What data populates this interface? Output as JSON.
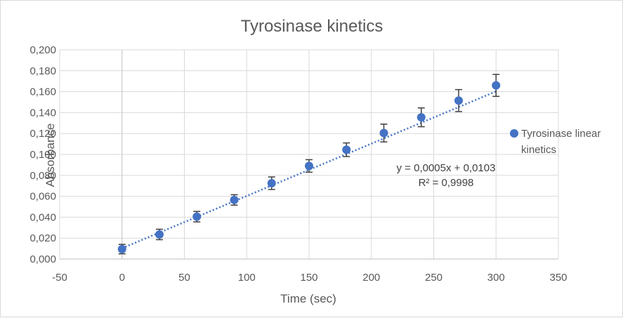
{
  "chart_data": {
    "type": "scatter",
    "title": "Tyrosinase kinetics",
    "xlabel": "Time (sec)",
    "ylabel": "Absorbance",
    "xlim": [
      -50,
      350
    ],
    "ylim": [
      0,
      0.2
    ],
    "x_ticks": [
      -50,
      0,
      50,
      100,
      150,
      200,
      250,
      300,
      350
    ],
    "x_tick_labels": [
      "-50",
      "0",
      "50",
      "100",
      "150",
      "200",
      "250",
      "300",
      "350"
    ],
    "y_ticks": [
      0,
      0.02,
      0.04,
      0.06,
      0.08,
      0.1,
      0.12,
      0.14,
      0.16,
      0.18,
      0.2
    ],
    "y_tick_labels": [
      "0,000",
      "0,020",
      "0,040",
      "0,060",
      "0,080",
      "0,100",
      "0,120",
      "0,140",
      "0,160",
      "0,180",
      "0,200"
    ],
    "grid": true,
    "legend_position": "right",
    "series": [
      {
        "name": "Tyrosinase linear kinetics",
        "legend_lines": [
          "Tyrosinase linear",
          "kinetics"
        ],
        "color": "#4472c4",
        "x": [
          0,
          30,
          60,
          90,
          120,
          150,
          180,
          210,
          240,
          270,
          300
        ],
        "y": [
          0.0095,
          0.0235,
          0.0405,
          0.0565,
          0.0725,
          0.089,
          0.1045,
          0.1205,
          0.1355,
          0.1515,
          0.166
        ],
        "error": [
          0.0045,
          0.005,
          0.005,
          0.005,
          0.006,
          0.006,
          0.0065,
          0.0085,
          0.009,
          0.0105,
          0.0105
        ]
      }
    ],
    "trendline": {
      "type": "linear",
      "slope": 0.0005,
      "intercept": 0.0103,
      "x_range": [
        0,
        300
      ],
      "color": "#4472c4",
      "equation": "y = 0,0005x + 0,0103",
      "r_squared": "R² = 0,9998"
    }
  }
}
